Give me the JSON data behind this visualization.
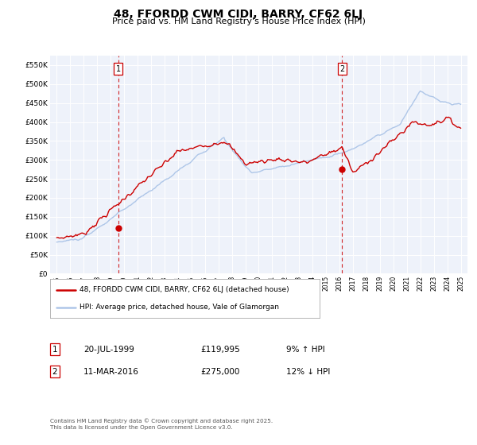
{
  "title": "48, FFORDD CWM CIDI, BARRY, CF62 6LJ",
  "subtitle": "Price paid vs. HM Land Registry's House Price Index (HPI)",
  "legend_line1": "48, FFORDD CWM CIDI, BARRY, CF62 6LJ (detached house)",
  "legend_line2": "HPI: Average price, detached house, Vale of Glamorgan",
  "sale1_label": "1",
  "sale1_date": "20-JUL-1999",
  "sale1_price": "£119,995",
  "sale1_hpi": "9% ↑ HPI",
  "sale2_label": "2",
  "sale2_date": "11-MAR-2016",
  "sale2_price": "£275,000",
  "sale2_hpi": "12% ↓ HPI",
  "footer": "Contains HM Land Registry data © Crown copyright and database right 2025.\nThis data is licensed under the Open Government Licence v3.0.",
  "sale1_x": 1999.55,
  "sale1_y": 119995,
  "sale2_x": 2016.19,
  "sale2_y": 275000,
  "hpi_color": "#aec6e8",
  "price_color": "#cc0000",
  "vline_color": "#cc0000",
  "plot_bg_color": "#eef2fa",
  "grid_color": "#ffffff",
  "ylim": [
    0,
    575000
  ],
  "xlim": [
    1994.5,
    2025.5
  ],
  "yticks": [
    0,
    50000,
    100000,
    150000,
    200000,
    250000,
    300000,
    350000,
    400000,
    450000,
    500000,
    550000
  ],
  "ytick_labels": [
    "£0",
    "£50K",
    "£100K",
    "£150K",
    "£200K",
    "£250K",
    "£300K",
    "£350K",
    "£400K",
    "£450K",
    "£500K",
    "£550K"
  ],
  "xticks": [
    1995,
    1996,
    1997,
    1998,
    1999,
    2000,
    2001,
    2002,
    2003,
    2004,
    2005,
    2006,
    2007,
    2008,
    2009,
    2010,
    2011,
    2012,
    2013,
    2014,
    2015,
    2016,
    2017,
    2018,
    2019,
    2020,
    2021,
    2022,
    2023,
    2024,
    2025
  ]
}
